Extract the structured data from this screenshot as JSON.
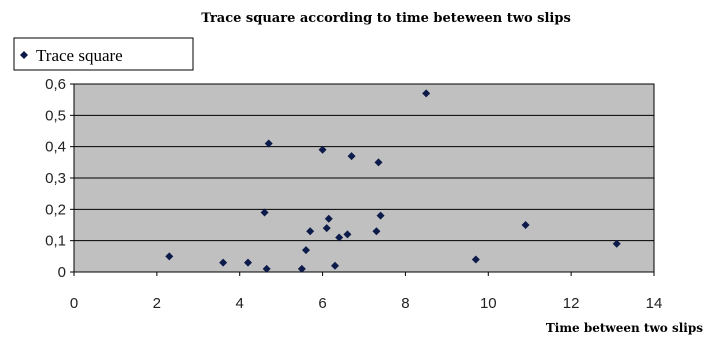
{
  "chart_data": {
    "type": "scatter",
    "title": "Trace square according to time beteween two slips",
    "xlabel": "Time between two slips",
    "ylabel": "",
    "xlim": [
      0,
      14
    ],
    "ylim": [
      0,
      0.6
    ],
    "x_ticks": [
      "0",
      "2",
      "4",
      "6",
      "8",
      "10",
      "12",
      "14"
    ],
    "y_ticks": [
      "0",
      "0,1",
      "0,2",
      "0,3",
      "0,4",
      "0,5",
      "0,6"
    ],
    "grid": "horizontal",
    "legend_position": "top-left",
    "series": [
      {
        "name": "Trace square",
        "color": "#0d1b4a",
        "marker": "diamond",
        "points": [
          {
            "x": 2.3,
            "y": 0.05
          },
          {
            "x": 3.6,
            "y": 0.03
          },
          {
            "x": 4.2,
            "y": 0.03
          },
          {
            "x": 4.6,
            "y": 0.19
          },
          {
            "x": 4.65,
            "y": 0.01
          },
          {
            "x": 4.7,
            "y": 0.41
          },
          {
            "x": 5.5,
            "y": 0.01
          },
          {
            "x": 5.6,
            "y": 0.07
          },
          {
            "x": 5.7,
            "y": 0.13
          },
          {
            "x": 6.0,
            "y": 0.39
          },
          {
            "x": 6.1,
            "y": 0.14
          },
          {
            "x": 6.15,
            "y": 0.17
          },
          {
            "x": 6.3,
            "y": 0.02
          },
          {
            "x": 6.4,
            "y": 0.11
          },
          {
            "x": 6.6,
            "y": 0.12
          },
          {
            "x": 6.7,
            "y": 0.37
          },
          {
            "x": 7.3,
            "y": 0.13
          },
          {
            "x": 7.35,
            "y": 0.35
          },
          {
            "x": 7.4,
            "y": 0.18
          },
          {
            "x": 8.5,
            "y": 0.57
          },
          {
            "x": 9.7,
            "y": 0.04
          },
          {
            "x": 10.9,
            "y": 0.15
          },
          {
            "x": 13.1,
            "y": 0.09
          }
        ]
      }
    ],
    "plot_background": "#c0c0c0"
  }
}
